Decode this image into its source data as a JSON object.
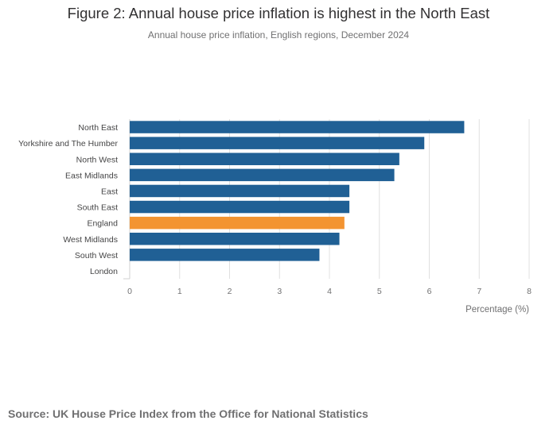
{
  "title": "Figure 2: Annual house price inflation is highest in the North East",
  "subtitle": "Annual house price inflation, English regions, December 2024",
  "source": "Source: UK House Price Index from the Office for National Statistics",
  "colors": {
    "regions": "#206095",
    "highlight": "#f39431",
    "grid": "#e0e0e0",
    "axis_text": "#707071"
  },
  "chart_data": {
    "type": "bar",
    "orientation": "horizontal",
    "title": "Figure 2: Annual house price inflation is highest in the North East",
    "subtitle": "Annual house price inflation, English regions, December 2024",
    "xlabel": "Percentage (%)",
    "ylabel": "",
    "xlim": [
      0,
      8
    ],
    "xticks": [
      0,
      1,
      2,
      3,
      4,
      5,
      6,
      7,
      8
    ],
    "grid": "vertical",
    "categories": [
      "North East",
      "Yorkshire and The Humber",
      "North West",
      "East Midlands",
      "East",
      "South East",
      "England",
      "West Midlands",
      "South West",
      "London"
    ],
    "values": [
      6.7,
      5.9,
      5.4,
      5.3,
      4.4,
      4.4,
      4.3,
      4.2,
      3.8,
      0.0
    ],
    "highlight_category": "England"
  }
}
